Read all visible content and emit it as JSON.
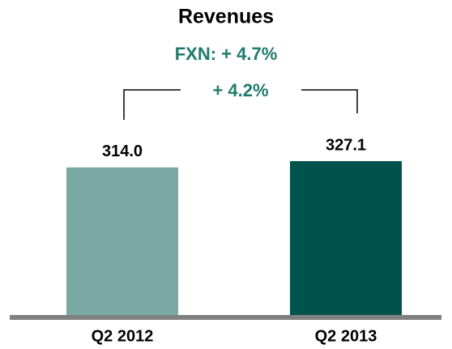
{
  "chart_data": {
    "type": "bar",
    "title": "Revenues",
    "annotations": [
      "FXN: + 4.7%",
      "+ 4.2%"
    ],
    "categories": [
      "Q2 2012",
      "Q2 2013"
    ],
    "values": [
      314.0,
      327.1
    ],
    "value_labels": [
      "314.0",
      "327.1"
    ],
    "colors": [
      "#7aa9a3",
      "#00524f"
    ]
  }
}
